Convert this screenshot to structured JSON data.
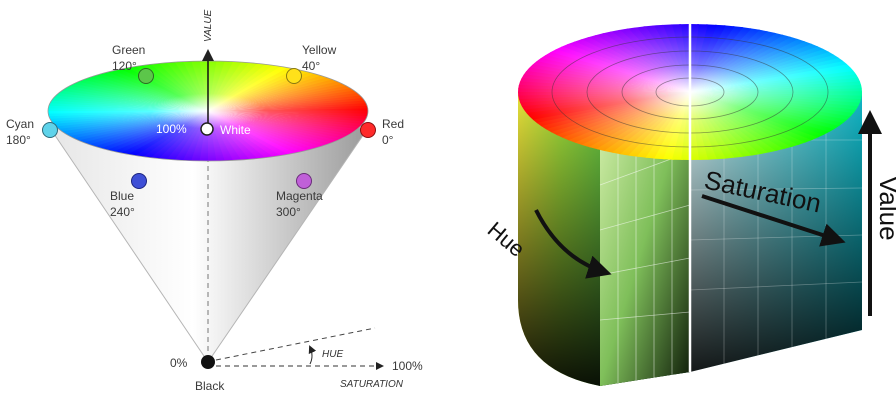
{
  "cone": {
    "axis_value": "VALUE",
    "white": "White",
    "black": "Black",
    "center_percent": "100%",
    "bottom_percent": "0%",
    "hue_arc": "HUE",
    "saturation_axis": "SATURATION",
    "saturation_end": "100%",
    "colors": [
      {
        "name": "Red",
        "deg": "0°",
        "hex": "#ff2a2a"
      },
      {
        "name": "Yellow",
        "deg": "40°",
        "hex": "#ffe11a"
      },
      {
        "name": "Green",
        "deg": "120°",
        "hex": "#5cc64a"
      },
      {
        "name": "Cyan",
        "deg": "180°",
        "hex": "#5fd3ea"
      },
      {
        "name": "Blue",
        "deg": "240°",
        "hex": "#3e4fd6"
      },
      {
        "name": "Magenta",
        "deg": "300°",
        "hex": "#c060d8"
      }
    ]
  },
  "cylinder": {
    "hue": "Hue",
    "saturation": "Saturation",
    "value": "Value"
  }
}
